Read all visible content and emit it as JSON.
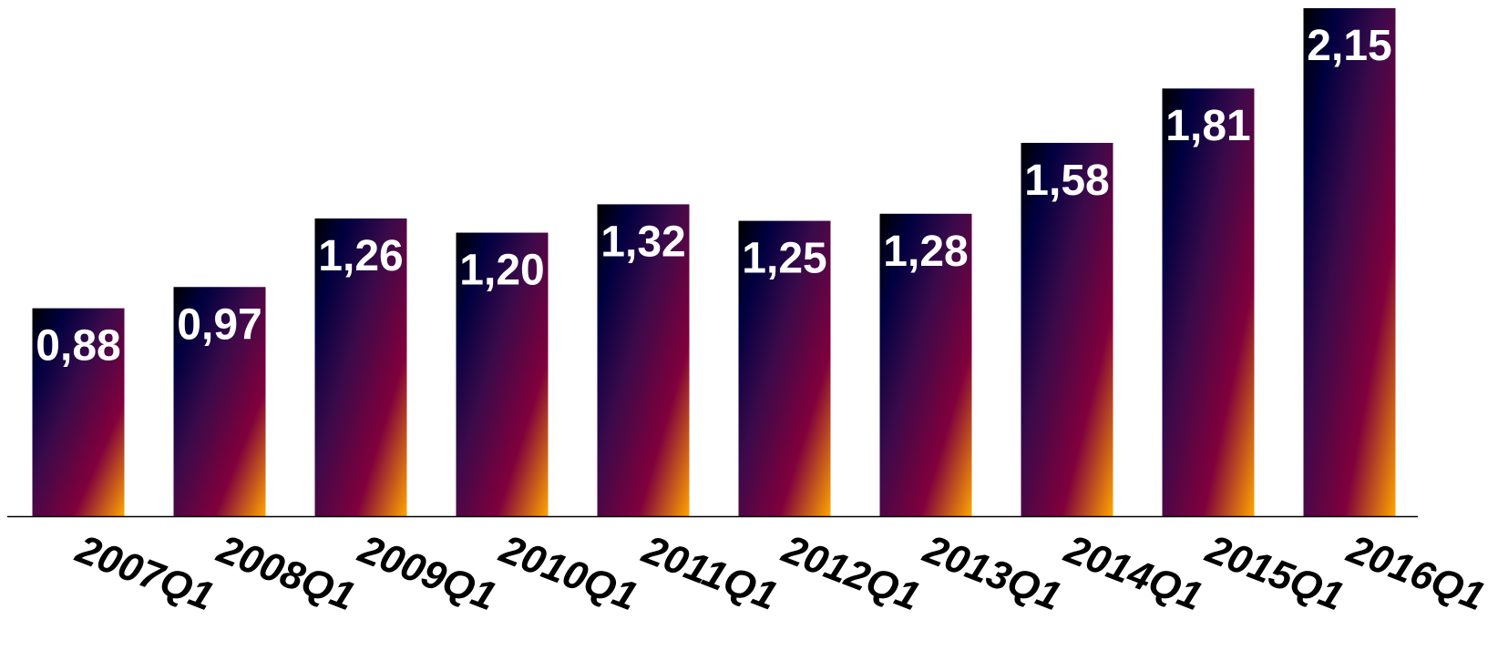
{
  "chart_data": {
    "type": "bar",
    "categories": [
      "2007Q1",
      "2008Q1",
      "2009Q1",
      "2010Q1",
      "2011Q1",
      "2012Q1",
      "2013Q1",
      "2014Q1",
      "2015Q1",
      "2016Q1"
    ],
    "values": [
      0.88,
      0.97,
      1.26,
      1.2,
      1.32,
      1.25,
      1.28,
      1.58,
      1.81,
      2.15
    ],
    "data_labels": [
      "0,88",
      "0,97",
      "1,26",
      "1,20",
      "1,32",
      "1,25",
      "1,28",
      "1,58",
      "1,81",
      "2,15"
    ],
    "title": "",
    "xlabel": "",
    "ylabel": "",
    "ylim": [
      0,
      2.15
    ],
    "grid": false,
    "legend": "none",
    "bar_gradient": [
      "#000000",
      "#000040",
      "#3a0a4a",
      "#80003c",
      "#ffa500"
    ],
    "label_color": "#ffffff",
    "axis_color": "#000000"
  }
}
